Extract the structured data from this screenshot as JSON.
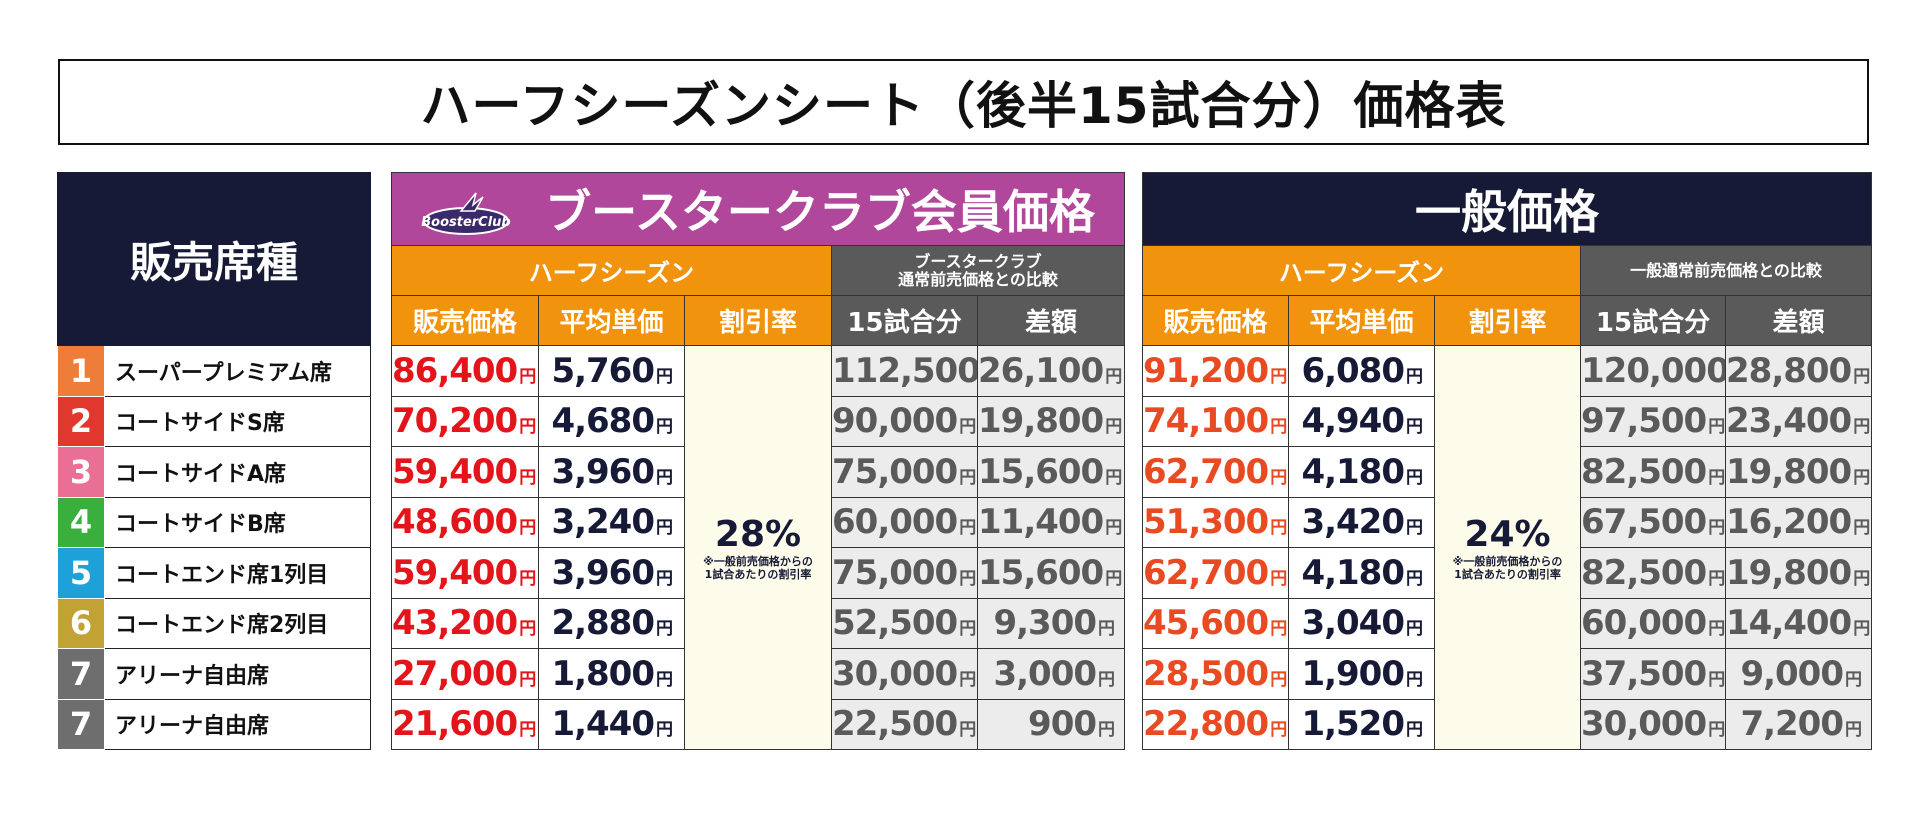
{
  "title": "ハーフシーズンシート（後半15試合分）価格表",
  "seat_header": "販売席種",
  "seats": [
    {
      "num": "1",
      "name": "スーパープレミアム席",
      "color": "#ef7d3a"
    },
    {
      "num": "2",
      "name": "コートサイドS席",
      "color": "#e1382d"
    },
    {
      "num": "3",
      "name": "コートサイドA席",
      "color": "#ea6f95"
    },
    {
      "num": "4",
      "name": "コートサイドB席",
      "color": "#3aaf3e"
    },
    {
      "num": "5",
      "name": "コートエンド席1列目",
      "color": "#1ea0d8"
    },
    {
      "num": "6",
      "name": "コートエンド席2列目",
      "color": "#c2a234"
    },
    {
      "num": "7",
      "name": "アリーナ自由席",
      "color": "#6e6e6e"
    },
    {
      "num": "7",
      "name": "アリーナ自由席",
      "color": "#6e6e6e"
    }
  ],
  "member": {
    "title": "ブースタークラブ会員価格",
    "logo_text": "BoosterClub",
    "half_season": "ハーフシーズン",
    "compare_label": "ブースタークラブ\n通常前売価格との比較",
    "col_price": "販売価格",
    "col_avg": "平均単価",
    "col_discount": "割引率",
    "col_15": "15試合分",
    "col_diff": "差額",
    "discount": "28%",
    "discount_note": "※一般前売価格からの\n1試合あたりの割引率",
    "yen": "円",
    "rows": [
      {
        "price": "86,400",
        "avg": "5,760",
        "full": "112,500",
        "diff": "26,100"
      },
      {
        "price": "70,200",
        "avg": "4,680",
        "full": "90,000",
        "diff": "19,800"
      },
      {
        "price": "59,400",
        "avg": "3,960",
        "full": "75,000",
        "diff": "15,600"
      },
      {
        "price": "48,600",
        "avg": "3,240",
        "full": "60,000",
        "diff": "11,400"
      },
      {
        "price": "59,400",
        "avg": "3,960",
        "full": "75,000",
        "diff": "15,600"
      },
      {
        "price": "43,200",
        "avg": "2,880",
        "full": "52,500",
        "diff": "9,300"
      },
      {
        "price": "27,000",
        "avg": "1,800",
        "full": "30,000",
        "diff": "3,000"
      },
      {
        "price": "21,600",
        "avg": "1,440",
        "full": "22,500",
        "diff": "900"
      }
    ]
  },
  "general": {
    "title": "一般価格",
    "half_season": "ハーフシーズン",
    "compare_label": "一般通常前売価格との比較",
    "col_price": "販売価格",
    "col_avg": "平均単価",
    "col_discount": "割引率",
    "col_15": "15試合分",
    "col_diff": "差額",
    "discount": "24%",
    "discount_note": "※一般前売価格からの\n1試合あたりの割引率",
    "yen": "円",
    "rows": [
      {
        "price": "91,200",
        "avg": "6,080",
        "full": "120,000",
        "diff": "28,800"
      },
      {
        "price": "74,100",
        "avg": "4,940",
        "full": "97,500",
        "diff": "23,400"
      },
      {
        "price": "62,700",
        "avg": "4,180",
        "full": "82,500",
        "diff": "19,800"
      },
      {
        "price": "51,300",
        "avg": "3,420",
        "full": "67,500",
        "diff": "16,200"
      },
      {
        "price": "62,700",
        "avg": "4,180",
        "full": "82,500",
        "diff": "19,800"
      },
      {
        "price": "45,600",
        "avg": "3,040",
        "full": "60,000",
        "diff": "14,400"
      },
      {
        "price": "28,500",
        "avg": "1,900",
        "full": "37,500",
        "diff": "9,000"
      },
      {
        "price": "22,800",
        "avg": "1,520",
        "full": "30,000",
        "diff": "7,200"
      }
    ]
  }
}
